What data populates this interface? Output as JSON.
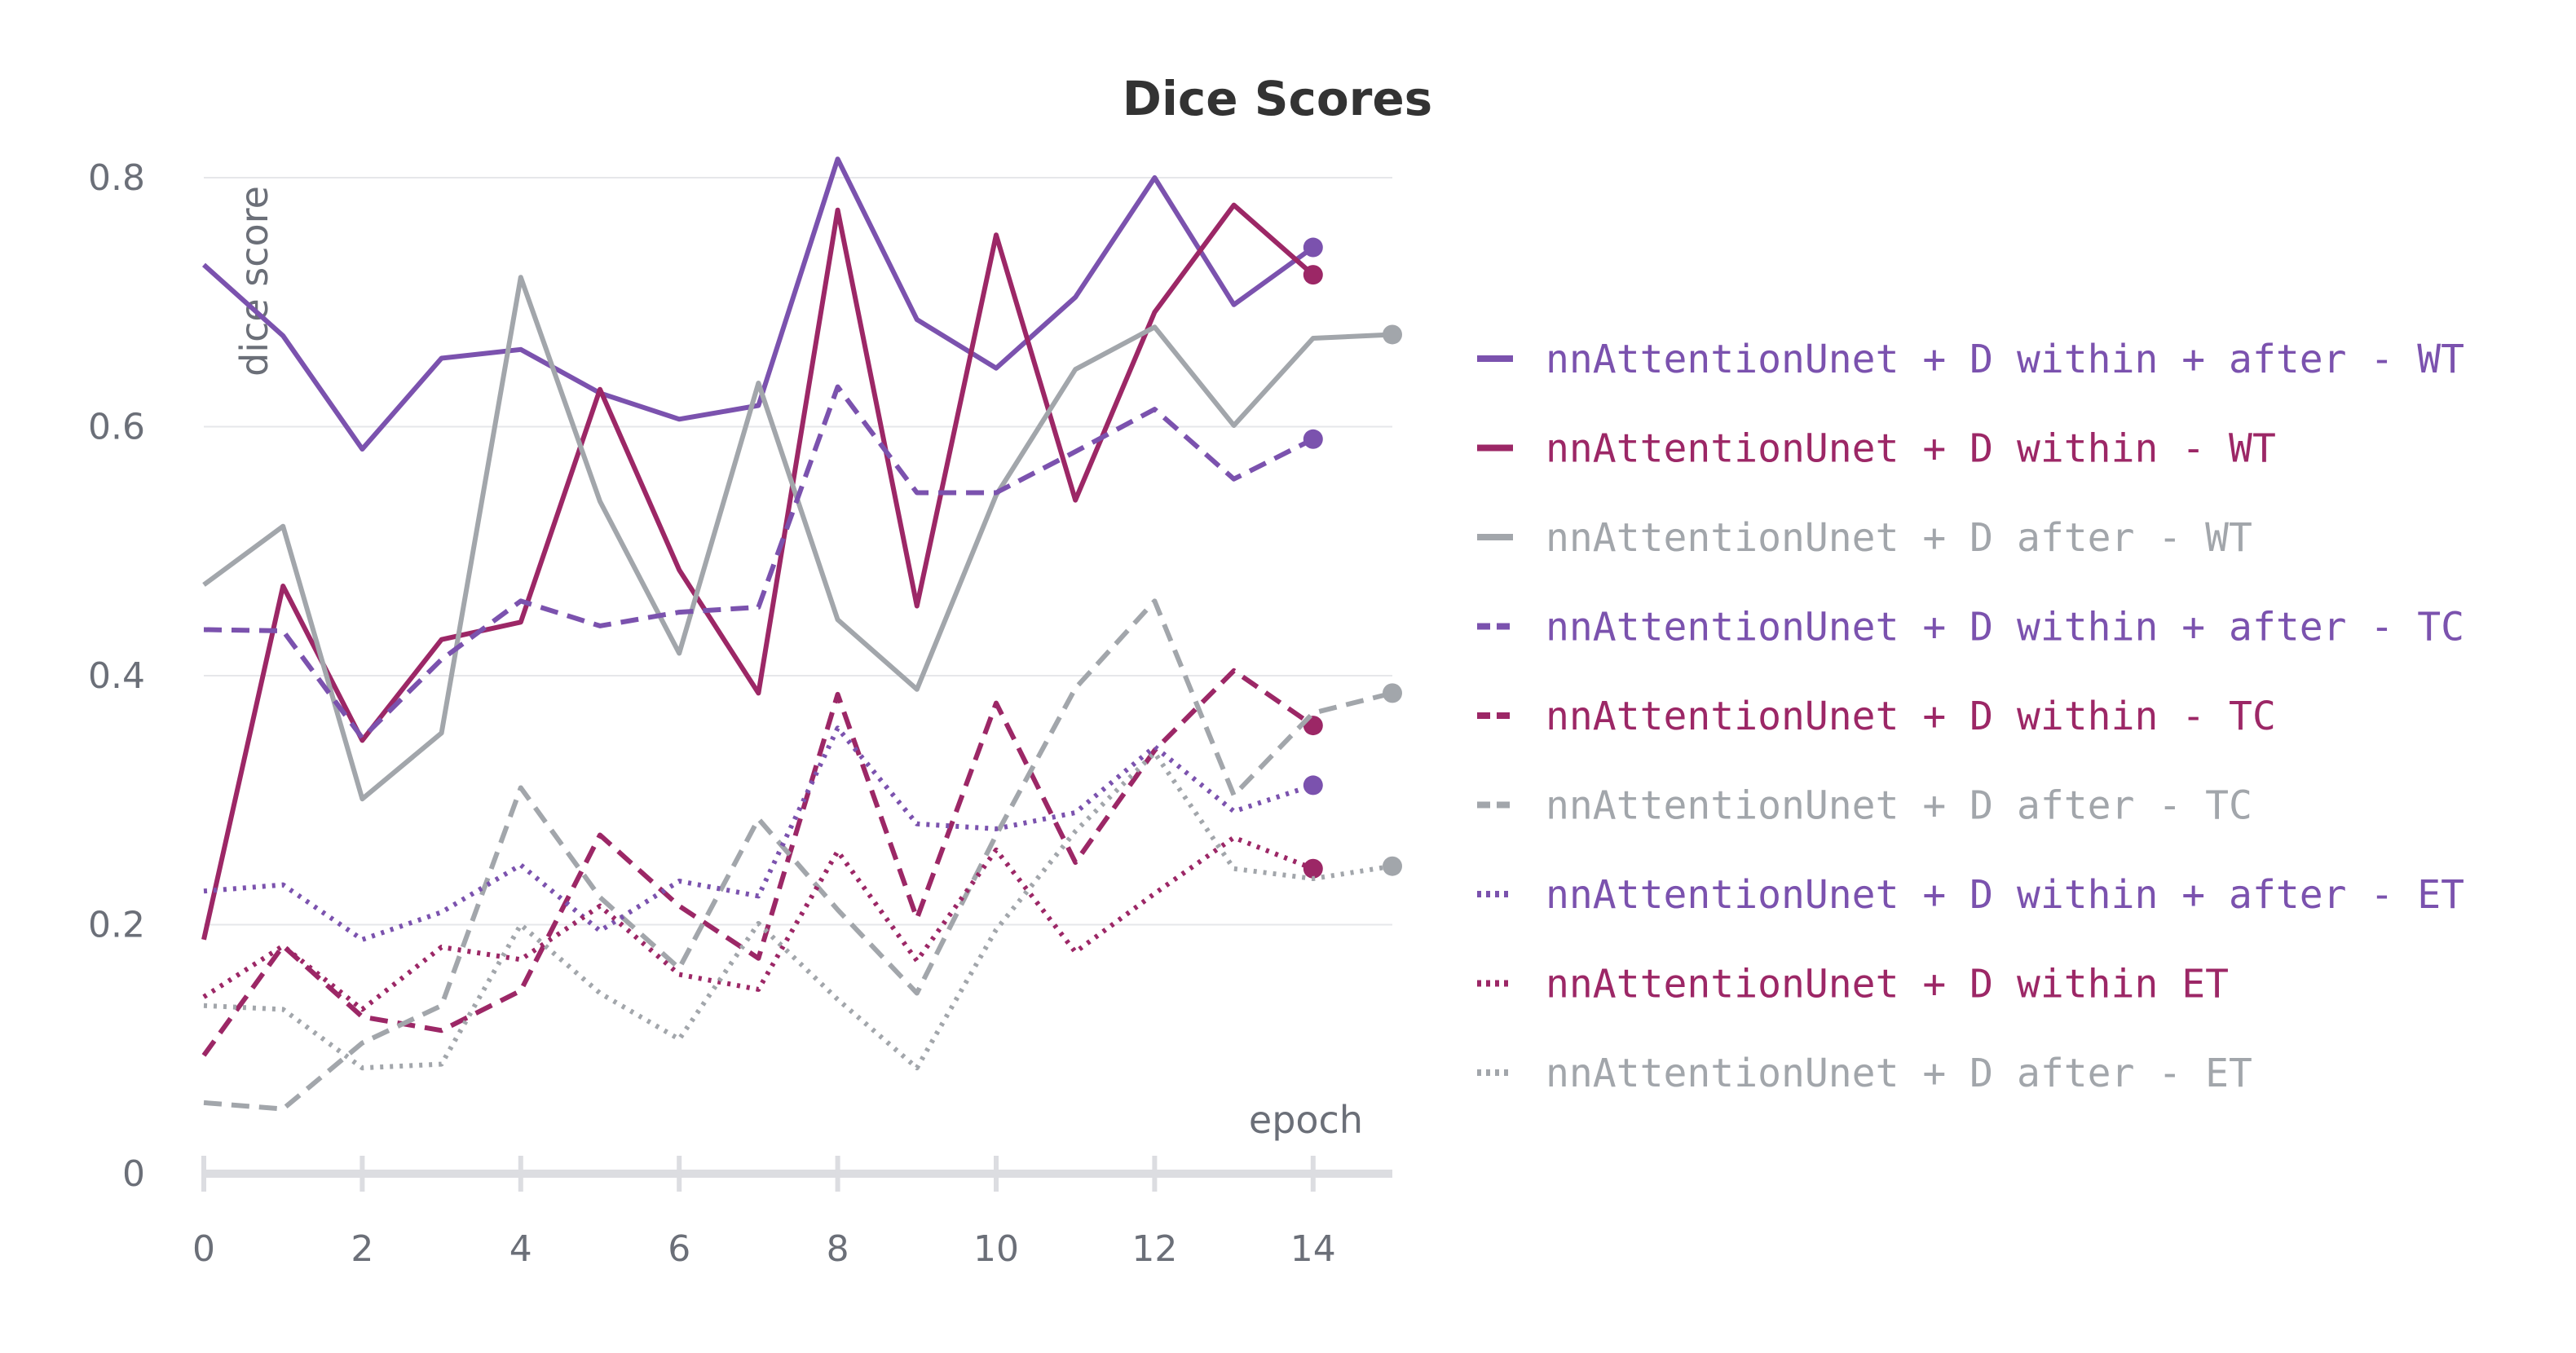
{
  "chart_data": {
    "type": "line",
    "title": "Dice Scores",
    "xlabel": "epoch",
    "ylabel": "dice score",
    "xlim": [
      0,
      15
    ],
    "ylim": [
      0,
      0.8
    ],
    "x_ticks": [
      0,
      2,
      4,
      6,
      8,
      10,
      12,
      14
    ],
    "x_tick_labels": [
      "0",
      "2",
      "4",
      "6",
      "8",
      "10",
      "12",
      "14"
    ],
    "y_ticks": [
      0,
      0.2,
      0.4,
      0.6,
      0.8
    ],
    "y_tick_labels": [
      "0",
      "0.2",
      "0.4",
      "0.6",
      "0.8"
    ],
    "grid": true,
    "legend_position": "right",
    "series": [
      {
        "name": "nnAttentionUnet + D within + after - WT",
        "color": "#7b52ae",
        "dash": "solid",
        "x": [
          0,
          1,
          2,
          3,
          4,
          5,
          6,
          7,
          8,
          9,
          10,
          11,
          12,
          13,
          14
        ],
        "values": [
          0.73,
          0.673,
          0.582,
          0.655,
          0.662,
          0.627,
          0.606,
          0.617,
          0.815,
          0.686,
          0.647,
          0.704,
          0.8,
          0.698,
          0.744
        ]
      },
      {
        "name": "nnAttentionUnet + D within - WT",
        "color": "#9c2766",
        "dash": "solid",
        "x": [
          0,
          1,
          2,
          3,
          4,
          5,
          6,
          7,
          8,
          9,
          10,
          11,
          12,
          13,
          14
        ],
        "values": [
          0.188,
          0.472,
          0.348,
          0.429,
          0.443,
          0.63,
          0.485,
          0.386,
          0.774,
          0.456,
          0.754,
          0.541,
          0.692,
          0.778,
          0.722
        ]
      },
      {
        "name": "nnAttentionUnet + D after - WT",
        "color": "#a2a6ab",
        "dash": "solid",
        "x": [
          0,
          1,
          2,
          3,
          4,
          5,
          6,
          7,
          8,
          9,
          10,
          11,
          12,
          13,
          14,
          15
        ],
        "values": [
          0.473,
          0.52,
          0.301,
          0.354,
          0.72,
          0.54,
          0.418,
          0.635,
          0.445,
          0.389,
          0.545,
          0.646,
          0.68,
          0.601,
          0.671,
          0.674
        ]
      },
      {
        "name": "nnAttentionUnet + D within + after - TC",
        "color": "#7b52ae",
        "dash": "dashed",
        "x": [
          0,
          1,
          2,
          3,
          4,
          5,
          6,
          7,
          8,
          9,
          10,
          11,
          12,
          13,
          14
        ],
        "values": [
          0.437,
          0.436,
          0.35,
          0.413,
          0.46,
          0.44,
          0.451,
          0.455,
          0.632,
          0.547,
          0.547,
          0.58,
          0.614,
          0.558,
          0.59
        ]
      },
      {
        "name": "nnAttentionUnet + D within - TC",
        "color": "#9c2766",
        "dash": "dashed",
        "x": [
          0,
          1,
          2,
          3,
          4,
          5,
          6,
          7,
          8,
          9,
          10,
          11,
          12,
          13,
          14
        ],
        "values": [
          0.095,
          0.183,
          0.126,
          0.115,
          0.147,
          0.272,
          0.215,
          0.173,
          0.385,
          0.205,
          0.378,
          0.25,
          0.34,
          0.404,
          0.36
        ]
      },
      {
        "name": "nnAttentionUnet + D after - TC",
        "color": "#a2a6ab",
        "dash": "dashed",
        "x": [
          0,
          1,
          2,
          3,
          4,
          5,
          6,
          7,
          8,
          9,
          10,
          11,
          12,
          13,
          14,
          15
        ],
        "values": [
          0.057,
          0.052,
          0.105,
          0.135,
          0.31,
          0.222,
          0.165,
          0.285,
          0.212,
          0.145,
          0.272,
          0.39,
          0.46,
          0.304,
          0.37,
          0.386
        ]
      },
      {
        "name": "nnAttentionUnet + D within + after - ET",
        "color": "#7b52ae",
        "dash": "dotted",
        "x": [
          0,
          1,
          2,
          3,
          4,
          5,
          6,
          7,
          8,
          9,
          10,
          11,
          12,
          13,
          14
        ],
        "values": [
          0.227,
          0.232,
          0.188,
          0.21,
          0.248,
          0.195,
          0.235,
          0.223,
          0.358,
          0.281,
          0.277,
          0.29,
          0.343,
          0.291,
          0.312
        ]
      },
      {
        "name": "nnAttentionUnet + D within ET",
        "color": "#9c2766",
        "dash": "dotted",
        "x": [
          0,
          1,
          2,
          3,
          4,
          5,
          6,
          7,
          8,
          9,
          10,
          11,
          12,
          13,
          14
        ],
        "values": [
          0.142,
          0.183,
          0.132,
          0.182,
          0.172,
          0.215,
          0.16,
          0.148,
          0.259,
          0.171,
          0.26,
          0.178,
          0.225,
          0.27,
          0.245
        ]
      },
      {
        "name": "nnAttentionUnet + D after - ET",
        "color": "#a2a6ab",
        "dash": "dotted",
        "x": [
          0,
          1,
          2,
          3,
          4,
          5,
          6,
          7,
          8,
          9,
          10,
          11,
          12,
          13,
          14,
          15
        ],
        "values": [
          0.135,
          0.132,
          0.085,
          0.088,
          0.2,
          0.145,
          0.108,
          0.201,
          0.14,
          0.085,
          0.196,
          0.275,
          0.338,
          0.245,
          0.237,
          0.247
        ]
      }
    ]
  }
}
